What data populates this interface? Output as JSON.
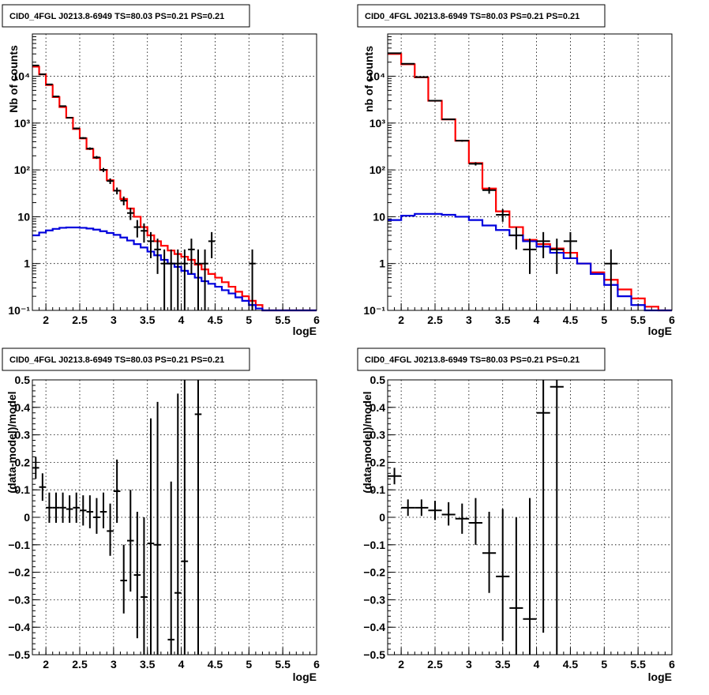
{
  "panel_title": "CID0_4FGL J0213.8-6949 TS=80.03 PS=0.21 PS=0.21",
  "chart_data": [
    {
      "id": "p0",
      "type": "line",
      "title": "CID0_4FGL J0213.8-6949 TS=80.03 PS=0.21 PS=0.21",
      "xlabel": "logE",
      "ylabel": "Nb of counts",
      "log_y": true,
      "xlim": [
        1.8,
        6
      ],
      "ylim": [
        0.1,
        80000
      ],
      "x_ticks": [
        2,
        2.5,
        3,
        3.5,
        4,
        4.5,
        5,
        5.5,
        6
      ],
      "x_tick_labels": [
        "2",
        "2.5",
        "3",
        "3.5",
        "4",
        "4.5",
        "5",
        "5.5",
        "6"
      ],
      "y_ticks": [
        0.1,
        1,
        10,
        100,
        1000,
        10000
      ],
      "y_tick_labels": [
        "10⁻¹",
        "1",
        "10",
        "10²",
        "10³",
        "10⁴"
      ],
      "grid": true,
      "series": [
        {
          "color": "#ff0000",
          "style": "hist",
          "edges": [
            1.8,
            1.9,
            2.0,
            2.1,
            2.2,
            2.3,
            2.4,
            2.5,
            2.6,
            2.7,
            2.8,
            2.9,
            3.0,
            3.1,
            3.2,
            3.3,
            3.4,
            3.5,
            3.6,
            3.7,
            3.8,
            3.9,
            4.0,
            4.1,
            4.2,
            4.3,
            4.4,
            4.5,
            4.6,
            4.7,
            4.8,
            4.9,
            5.0,
            5.1,
            5.2,
            5.3,
            5.4,
            5.5,
            5.6,
            5.7,
            5.8,
            5.9,
            6.0
          ],
          "values": [
            16000,
            11000,
            6500,
            3600,
            2200,
            1300,
            750,
            470,
            280,
            180,
            100,
            60,
            36,
            24,
            15,
            10,
            6,
            4,
            3,
            2.4,
            1.9,
            1.6,
            1.4,
            1.2,
            0.95,
            0.75,
            0.6,
            0.5,
            0.4,
            0.32,
            0.25,
            0.2,
            0.16,
            0.13,
            0.1,
            0.1,
            0.1,
            0.1,
            0.1,
            0.1,
            0.1,
            0.1
          ]
        },
        {
          "color": "#0000dd",
          "style": "hist",
          "edges": [
            1.8,
            1.9,
            2.0,
            2.1,
            2.2,
            2.3,
            2.4,
            2.5,
            2.6,
            2.7,
            2.8,
            2.9,
            3.0,
            3.1,
            3.2,
            3.3,
            3.4,
            3.5,
            3.6,
            3.7,
            3.8,
            3.9,
            4.0,
            4.1,
            4.2,
            4.3,
            4.4,
            4.5,
            4.6,
            4.7,
            4.8,
            4.9,
            5.0,
            5.1,
            5.2,
            5.3,
            5.4,
            5.5,
            5.6,
            5.7,
            5.8,
            5.9,
            6.0
          ],
          "values": [
            4,
            4.6,
            5.1,
            5.5,
            5.8,
            5.9,
            5.9,
            5.8,
            5.6,
            5.3,
            4.9,
            4.5,
            4.1,
            3.6,
            3.1,
            2.6,
            2.2,
            1.8,
            1.5,
            1.2,
            1.0,
            0.85,
            0.7,
            0.6,
            0.5,
            0.42,
            0.37,
            0.32,
            0.27,
            0.23,
            0.19,
            0.16,
            0.13,
            0.11,
            0.1,
            0.1,
            0.1,
            0.1,
            0.1,
            0.1,
            0.1,
            0.1
          ]
        },
        {
          "color": "#000000",
          "style": "points",
          "points": [
            {
              "x": 1.85,
              "y": 17000,
              "ylo": 16700,
              "yhi": 17300
            },
            {
              "x": 1.95,
              "y": 11000,
              "ylo": 10800,
              "yhi": 11200
            },
            {
              "x": 2.05,
              "y": 6700,
              "ylo": 6550,
              "yhi": 6850
            },
            {
              "x": 2.15,
              "y": 3700,
              "ylo": 3600,
              "yhi": 3800
            },
            {
              "x": 2.25,
              "y": 2300,
              "ylo": 2230,
              "yhi": 2370
            },
            {
              "x": 2.35,
              "y": 1300,
              "ylo": 1260,
              "yhi": 1340
            },
            {
              "x": 2.45,
              "y": 770,
              "ylo": 740,
              "yhi": 800
            },
            {
              "x": 2.55,
              "y": 480,
              "ylo": 460,
              "yhi": 500
            },
            {
              "x": 2.65,
              "y": 285,
              "ylo": 268,
              "yhi": 302
            },
            {
              "x": 2.75,
              "y": 185,
              "ylo": 172,
              "yhi": 198
            },
            {
              "x": 2.85,
              "y": 100,
              "ylo": 90,
              "yhi": 110
            },
            {
              "x": 2.95,
              "y": 58,
              "ylo": 50,
              "yhi": 66
            },
            {
              "x": 3.05,
              "y": 36,
              "ylo": 30,
              "yhi": 42
            },
            {
              "x": 3.15,
              "y": 22,
              "ylo": 17.5,
              "yhi": 27
            },
            {
              "x": 3.25,
              "y": 12,
              "ylo": 8.5,
              "yhi": 15.5
            },
            {
              "x": 3.35,
              "y": 6,
              "ylo": 3.6,
              "yhi": 8.5
            },
            {
              "x": 3.45,
              "y": 5,
              "ylo": 2.8,
              "yhi": 7.2
            },
            {
              "x": 3.55,
              "y": 3,
              "ylo": 1.3,
              "yhi": 4.7
            },
            {
              "x": 3.65,
              "y": 2,
              "ylo": 0.6,
              "yhi": 3.4
            },
            {
              "x": 3.75,
              "y": 1,
              "ylo": 0.1,
              "yhi": 2
            },
            {
              "x": 3.85,
              "y": 1,
              "ylo": 0.1,
              "yhi": 2
            },
            {
              "x": 3.95,
              "y": 1,
              "ylo": 0.1,
              "yhi": 2
            },
            {
              "x": 4.05,
              "y": 1,
              "ylo": 0.1,
              "yhi": 2
            },
            {
              "x": 4.15,
              "y": 2,
              "ylo": 0.6,
              "yhi": 3.4
            },
            {
              "x": 4.25,
              "y": 1,
              "ylo": 0.1,
              "yhi": 2
            },
            {
              "x": 4.35,
              "y": 1,
              "ylo": 0.1,
              "yhi": 2
            },
            {
              "x": 4.45,
              "y": 3,
              "ylo": 1.3,
              "yhi": 4.7
            },
            {
              "x": 5.05,
              "y": 1,
              "ylo": 0.1,
              "yhi": 2
            }
          ],
          "xerr": 0.05
        }
      ]
    },
    {
      "id": "p1",
      "type": "line",
      "title": "CID0_4FGL J0213.8-6949 TS=80.03 PS=0.21 PS=0.21",
      "xlabel": "logE",
      "ylabel": "nb of counts",
      "log_y": true,
      "xlim": [
        1.8,
        6
      ],
      "ylim": [
        0.1,
        80000
      ],
      "x_ticks": [
        2,
        2.5,
        3,
        3.5,
        4,
        4.5,
        5,
        5.5,
        6
      ],
      "x_tick_labels": [
        "2",
        "2.5",
        "3",
        "3.5",
        "4",
        "4.5",
        "5",
        "5.5",
        "6"
      ],
      "y_ticks": [
        0.1,
        1,
        10,
        100,
        1000,
        10000
      ],
      "y_tick_labels": [
        "10⁻¹",
        "1",
        "10",
        "10²",
        "10³",
        "10⁴"
      ],
      "grid": true,
      "series": [
        {
          "color": "#ff0000",
          "style": "hist",
          "edges": [
            1.8,
            2.0,
            2.2,
            2.4,
            2.6,
            2.8,
            3.0,
            3.2,
            3.4,
            3.6,
            3.8,
            4.0,
            4.2,
            4.4,
            4.6,
            4.8,
            5.0,
            5.2,
            5.4,
            5.6,
            5.8,
            6.0
          ],
          "values": [
            30000,
            18000,
            9500,
            3000,
            1200,
            420,
            140,
            40,
            13,
            6,
            3.2,
            2.6,
            2.1,
            1.7,
            1.0,
            0.65,
            0.45,
            0.28,
            0.18,
            0.12,
            0.1
          ]
        },
        {
          "color": "#0000dd",
          "style": "hist",
          "edges": [
            1.8,
            2.0,
            2.2,
            2.4,
            2.6,
            2.8,
            3.0,
            3.2,
            3.4,
            3.6,
            3.8,
            4.0,
            4.2,
            4.4,
            4.6,
            4.8,
            5.0,
            5.2,
            5.4,
            5.6,
            5.8,
            6.0
          ],
          "values": [
            8.5,
            10.5,
            11.5,
            11.5,
            11,
            10,
            8.5,
            6.5,
            5.2,
            4.0,
            3.0,
            2.3,
            1.7,
            1.3,
            1.0,
            0.6,
            0.35,
            0.2,
            0.13,
            0.1,
            0.1
          ]
        },
        {
          "color": "#000000",
          "style": "points",
          "points": [
            {
              "x": 1.9,
              "y": 31000,
              "ylo": 30700,
              "yhi": 31300
            },
            {
              "x": 2.1,
              "y": 18500,
              "ylo": 18200,
              "yhi": 18800
            },
            {
              "x": 2.3,
              "y": 9600,
              "ylo": 9400,
              "yhi": 9800
            },
            {
              "x": 2.5,
              "y": 3000,
              "ylo": 2950,
              "yhi": 3050
            },
            {
              "x": 2.7,
              "y": 1200,
              "ylo": 1170,
              "yhi": 1230
            },
            {
              "x": 2.9,
              "y": 420,
              "ylo": 400,
              "yhi": 440
            },
            {
              "x": 3.1,
              "y": 135,
              "ylo": 124,
              "yhi": 146
            },
            {
              "x": 3.3,
              "y": 37,
              "ylo": 31,
              "yhi": 43
            },
            {
              "x": 3.5,
              "y": 11,
              "ylo": 7.8,
              "yhi": 14.5
            },
            {
              "x": 3.7,
              "y": 4,
              "ylo": 2,
              "yhi": 6
            },
            {
              "x": 3.9,
              "y": 2,
              "ylo": 0.6,
              "yhi": 3.4
            },
            {
              "x": 4.1,
              "y": 3,
              "ylo": 1.3,
              "yhi": 4.7
            },
            {
              "x": 4.3,
              "y": 2,
              "ylo": 0.6,
              "yhi": 3.4
            },
            {
              "x": 4.5,
              "y": 3,
              "ylo": 1.3,
              "yhi": 4.7
            },
            {
              "x": 5.1,
              "y": 1,
              "ylo": 0.1,
              "yhi": 2
            }
          ],
          "xerr": 0.1
        }
      ]
    },
    {
      "id": "p2",
      "type": "scatter",
      "title": "CID0_4FGL J0213.8-6949 TS=80.03 PS=0.21 PS=0.21",
      "xlabel": "logE",
      "ylabel": "(data-model)/model",
      "log_y": false,
      "xlim": [
        1.8,
        6
      ],
      "ylim": [
        -0.5,
        0.5
      ],
      "x_ticks": [
        2,
        2.5,
        3,
        3.5,
        4,
        4.5,
        5,
        5.5,
        6
      ],
      "x_tick_labels": [
        "2",
        "2.5",
        "3",
        "3.5",
        "4",
        "4.5",
        "5",
        "5.5",
        "6"
      ],
      "y_ticks": [
        -0.5,
        -0.4,
        -0.3,
        -0.2,
        -0.1,
        0,
        0.1,
        0.2,
        0.3,
        0.4,
        0.5
      ],
      "y_tick_labels": [
        "−0.5",
        "−0.4",
        "−0.3",
        "−0.2",
        "−0.1",
        "0",
        "0.1",
        "0.2",
        "0.3",
        "0.4",
        "0.5"
      ],
      "grid": true,
      "series": [
        {
          "color": "#000000",
          "style": "points",
          "xerr": 0.05,
          "points": [
            {
              "x": 1.85,
              "y": 0.18,
              "ylo": 0.14,
              "yhi": 0.22
            },
            {
              "x": 1.95,
              "y": 0.11,
              "ylo": 0.06,
              "yhi": 0.16
            },
            {
              "x": 2.05,
              "y": 0.035,
              "ylo": -0.02,
              "yhi": 0.09
            },
            {
              "x": 2.15,
              "y": 0.035,
              "ylo": -0.02,
              "yhi": 0.09
            },
            {
              "x": 2.25,
              "y": 0.035,
              "ylo": -0.02,
              "yhi": 0.09
            },
            {
              "x": 2.35,
              "y": 0.03,
              "ylo": -0.02,
              "yhi": 0.08
            },
            {
              "x": 2.45,
              "y": 0.035,
              "ylo": -0.02,
              "yhi": 0.09
            },
            {
              "x": 2.55,
              "y": 0.025,
              "ylo": -0.03,
              "yhi": 0.08
            },
            {
              "x": 2.65,
              "y": 0.02,
              "ylo": -0.04,
              "yhi": 0.08
            },
            {
              "x": 2.75,
              "y": 0.0,
              "ylo": -0.06,
              "yhi": 0.07
            },
            {
              "x": 2.85,
              "y": 0.02,
              "ylo": -0.04,
              "yhi": 0.09
            },
            {
              "x": 2.95,
              "y": -0.05,
              "ylo": -0.14,
              "yhi": 0.05
            },
            {
              "x": 3.05,
              "y": 0.095,
              "ylo": -0.02,
              "yhi": 0.21
            },
            {
              "x": 3.15,
              "y": -0.23,
              "ylo": -0.35,
              "yhi": -0.1
            },
            {
              "x": 3.25,
              "y": -0.085,
              "ylo": -0.27,
              "yhi": 0.1
            },
            {
              "x": 3.35,
              "y": -0.21,
              "ylo": -0.44,
              "yhi": 0.02
            },
            {
              "x": 3.45,
              "y": -0.29,
              "ylo": -0.5,
              "yhi": 0.0
            },
            {
              "x": 3.55,
              "y": -0.095,
              "ylo": -0.5,
              "yhi": 0.36
            },
            {
              "x": 3.65,
              "y": -0.1,
              "ylo": -0.5,
              "yhi": 0.42
            },
            {
              "x": 3.85,
              "y": -0.445,
              "ylo": -0.5,
              "yhi": 0.13
            },
            {
              "x": 3.95,
              "y": -0.275,
              "ylo": -0.5,
              "yhi": 0.45
            },
            {
              "x": 4.05,
              "y": -0.16,
              "ylo": -0.5,
              "yhi": 0.5
            },
            {
              "x": 4.25,
              "y": 0.375,
              "ylo": -0.5,
              "yhi": 0.5
            }
          ]
        }
      ]
    },
    {
      "id": "p3",
      "type": "scatter",
      "title": "CID0_4FGL J0213.8-6949 TS=80.03 PS=0.21 PS=0.21",
      "xlabel": "logE",
      "ylabel": "(data-model)/model",
      "log_y": false,
      "xlim": [
        1.8,
        6
      ],
      "ylim": [
        -0.5,
        0.5
      ],
      "x_ticks": [
        2,
        2.5,
        3,
        3.5,
        4,
        4.5,
        5,
        5.5,
        6
      ],
      "x_tick_labels": [
        "2",
        "2.5",
        "3",
        "3.5",
        "4",
        "4.5",
        "5",
        "5.5",
        "6"
      ],
      "y_ticks": [
        -0.5,
        -0.4,
        -0.3,
        -0.2,
        -0.1,
        0,
        0.1,
        0.2,
        0.3,
        0.4,
        0.5
      ],
      "y_tick_labels": [
        "−0.5",
        "−0.4",
        "−0.3",
        "−0.2",
        "−0.1",
        "0",
        "0.1",
        "0.2",
        "0.3",
        "0.4",
        "0.5"
      ],
      "grid": true,
      "series": [
        {
          "color": "#000000",
          "style": "points",
          "xerr": 0.1,
          "points": [
            {
              "x": 1.9,
              "y": 0.15,
              "ylo": 0.12,
              "yhi": 0.18
            },
            {
              "x": 2.1,
              "y": 0.035,
              "ylo": 0.005,
              "yhi": 0.065
            },
            {
              "x": 2.3,
              "y": 0.035,
              "ylo": 0.005,
              "yhi": 0.065
            },
            {
              "x": 2.5,
              "y": 0.025,
              "ylo": -0.01,
              "yhi": 0.06
            },
            {
              "x": 2.7,
              "y": 0.01,
              "ylo": -0.03,
              "yhi": 0.055
            },
            {
              "x": 2.9,
              "y": -0.005,
              "ylo": -0.06,
              "yhi": 0.05
            },
            {
              "x": 3.1,
              "y": -0.02,
              "ylo": -0.1,
              "yhi": 0.07
            },
            {
              "x": 3.3,
              "y": -0.13,
              "ylo": -0.275,
              "yhi": 0.02
            },
            {
              "x": 3.5,
              "y": -0.215,
              "ylo": -0.45,
              "yhi": 0.03
            },
            {
              "x": 3.7,
              "y": -0.33,
              "ylo": -0.5,
              "yhi": 0.0
            },
            {
              "x": 3.9,
              "y": -0.37,
              "ylo": -0.5,
              "yhi": 0.07
            },
            {
              "x": 4.1,
              "y": 0.38,
              "ylo": -0.42,
              "yhi": 0.5
            },
            {
              "x": 4.3,
              "y": 0.475,
              "ylo": -0.5,
              "yhi": 0.5
            }
          ]
        }
      ]
    }
  ]
}
